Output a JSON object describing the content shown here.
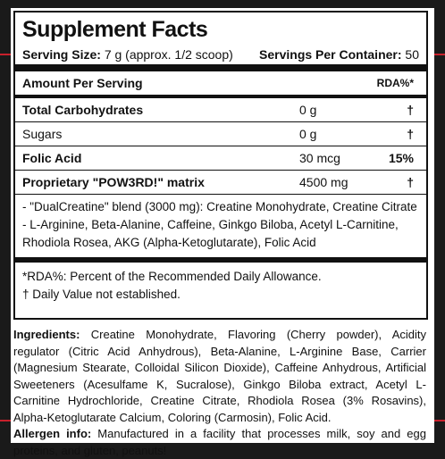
{
  "facts": {
    "title": "Supplement Facts",
    "serving_size_label": "Serving Size:",
    "serving_size_value": "7 g (approx. 1/2 scoop)",
    "servings_per_container_label": "Servings Per Container:",
    "servings_per_container_value": "50",
    "header": {
      "amount_per_serving": "Amount Per Serving",
      "rda": "RDA%*"
    },
    "rows": [
      {
        "name": "Total Carbohydrates",
        "amount": "0 g",
        "rda": "†"
      },
      {
        "name": "Sugars",
        "amount": "0 g",
        "rda": "†"
      },
      {
        "name": "Folic Acid",
        "amount": "30 mcg",
        "rda": "15%"
      },
      {
        "name": "Proprietary \"POW3RD!\" matrix",
        "amount": "4500 mg",
        "rda": "†"
      }
    ],
    "blend_lines": [
      "- \"DualCreatine\" blend (3000 mg): Creatine Monohydrate, Creatine Citrate",
      "- L-Arginine, Beta-Alanine, Caffeine, Ginkgo Biloba, Acetyl L-Carnitine,",
      "Rhodiola Rosea, AKG (Alpha-Ketoglutarate), Folic Acid"
    ],
    "notes": [
      "*RDA%: Percent of the Recommended Daily Allowance.",
      "† Daily Value not established."
    ]
  },
  "ingredients": {
    "label": "Ingredients:",
    "text": "Creatine Monohydrate, Flavoring (Cherry powder), Acidity regulator (Citric Acid Anhydrous), Beta-Alanine, L-Arginine Base, Carrier (Magnesium Stearate, Colloidal Silicon Dioxide), Caffeine Anhydrous, Artificial Sweeteners (Acesulfame K, Sucralose), Ginkgo Biloba extract, Acetyl L-Carnitine Hydrochloride, Creatine Citrate, Rhodiola Rosea (3% Rosavins), Alpha-Ketoglutarate Calcium, Coloring (Carmosin), Folic Acid."
  },
  "allergen": {
    "label": "Allergen info:",
    "text": "Manufactured in a facility that processes milk, soy and egg proteins, and gluten, peanuts!"
  },
  "colors": {
    "accent_line": "#c8202c",
    "background": "#1a1a1a"
  }
}
